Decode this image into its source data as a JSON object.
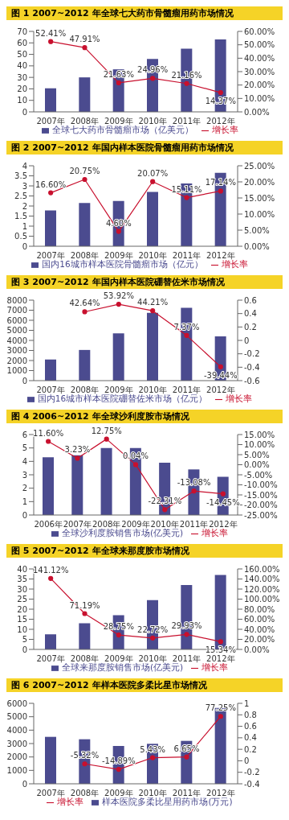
{
  "chart_data": [
    {
      "type": "bar",
      "title": "图 1 2007~2012 年全球七大药市骨髓瘤用药市场情况",
      "categories": [
        "2007年",
        "2008年",
        "2009年",
        "2010年",
        "2011年",
        "2012年"
      ],
      "series": [
        {
          "name": "全球七大药市骨髓瘤市场（亿美元）",
          "color": "#4b4b8f",
          "values": [
            20.5,
            30,
            37,
            46,
            55,
            63
          ]
        },
        {
          "type": "line",
          "axis": "y2",
          "name": "增长率",
          "color": "#c8102e",
          "values": [
            52.41,
            47.91,
            21.63,
            24.96,
            21.16,
            14.37
          ],
          "value_labels": [
            "52.41%",
            "47.91%",
            "21.63%",
            "24.96%",
            "21.16%",
            "14.37%"
          ]
        }
      ],
      "ylim": [
        0,
        70
      ],
      "yticks": [
        0,
        10,
        20,
        30,
        40,
        50,
        60,
        70
      ],
      "y2lim": [
        0,
        60
      ],
      "y2ticks": [
        {
          "value": 0,
          "label": "0.00%"
        },
        {
          "value": 10,
          "label": "10.00%"
        },
        {
          "value": 20,
          "label": "20.00%"
        },
        {
          "value": 30,
          "label": "30.00%"
        },
        {
          "value": 40,
          "label": "40.00%"
        },
        {
          "value": 50,
          "label": "50.00%"
        },
        {
          "value": 60,
          "label": "60.00%"
        }
      ],
      "legend": "bottom",
      "marker": "circle"
    },
    {
      "type": "bar",
      "title": "图 2 2007~2012 年国内样本医院骨髓瘤用药市场情况",
      "categories": [
        "2007年",
        "2008年",
        "2009年",
        "2010年",
        "2011年",
        "2012年"
      ],
      "series": [
        {
          "name": "国内16城市样本医院骨髓瘤市场（亿元）",
          "color": "#4b4b8f",
          "values": [
            1.78,
            2.15,
            2.25,
            2.7,
            3.12,
            3.65
          ]
        },
        {
          "type": "line",
          "axis": "y2",
          "name": "增长率",
          "color": "#c8102e",
          "values": [
            16.6,
            20.75,
            4.6,
            20.07,
            15.11,
            17.14
          ],
          "value_labels": [
            "16.60%",
            "20.75%",
            "4.60%",
            "20.07%",
            "15.11%",
            "17.14%"
          ]
        }
      ],
      "ylim": [
        0,
        4
      ],
      "yticks": [
        0,
        0.5,
        1,
        1.5,
        2,
        2.5,
        3,
        3.5,
        4
      ],
      "y2lim": [
        0,
        25
      ],
      "y2ticks": [
        {
          "value": 0,
          "label": "0.00%"
        },
        {
          "value": 5,
          "label": "5.00%"
        },
        {
          "value": 10,
          "label": "10.00%"
        },
        {
          "value": 15,
          "label": "15.00%"
        },
        {
          "value": 20,
          "label": "20.00%"
        },
        {
          "value": 25,
          "label": "25.00%"
        }
      ],
      "legend": "bottom",
      "marker": "circle"
    },
    {
      "type": "bar",
      "title": "图 3 2007~2012 年国内样本医院硼替佐米市场情况",
      "categories": [
        "2007年",
        "2008年",
        "2009年",
        "2010年",
        "2011年",
        "2012年"
      ],
      "series": [
        {
          "name": "国内16城市样本医院硼替佐米市场（亿元）",
          "color": "#4b4b8f",
          "values": [
            2100,
            3050,
            4700,
            6750,
            7250,
            4400
          ]
        },
        {
          "type": "line",
          "axis": "y2",
          "name": "增长率",
          "color": "#c8102e",
          "values": [
            null,
            0.4264,
            0.5392,
            0.4421,
            0.0737,
            -0.3944
          ],
          "value_labels": [
            null,
            "42.64%",
            "53.92%",
            "44.21%",
            "7.37%",
            "-39.44%"
          ]
        }
      ],
      "ylim": [
        0,
        8000
      ],
      "yticks": [
        0,
        1000,
        2000,
        3000,
        4000,
        5000,
        6000,
        7000,
        8000
      ],
      "y2lim": [
        -0.6,
        0.6
      ],
      "y2ticks": [
        -0.6,
        -0.4,
        -0.2,
        0,
        0.2,
        0.4,
        0.6
      ],
      "legend": "bottom",
      "marker": "circle"
    },
    {
      "type": "bar",
      "title": "图 4 2006~2012 年全球沙利度胺市场情况",
      "categories": [
        "2006年",
        "2007年",
        "2008年",
        "2009年",
        "2010年",
        "2011年",
        "2012年"
      ],
      "series": [
        {
          "name": "全球沙利度胺销售市场(亿美元)",
          "color": "#4b4b8f",
          "values": [
            4.3,
            4.45,
            5.0,
            5.0,
            3.9,
            3.4,
            2.85
          ]
        },
        {
          "type": "line",
          "axis": "y2",
          "name": "增长率",
          "color": "#c8102e",
          "values": [
            11.6,
            3.23,
            12.75,
            0.04,
            -22.31,
            -13.08,
            -14.45
          ],
          "value_labels": [
            "11.60%",
            "3.23%",
            "12.75%",
            "0.04%",
            "-22.31%",
            "-13.08%",
            "-14.45%"
          ]
        }
      ],
      "ylim": [
        0,
        6
      ],
      "yticks": [
        0,
        1,
        2,
        3,
        4,
        5,
        6
      ],
      "y2lim": [
        -25,
        15
      ],
      "y2ticks": [
        {
          "value": -25,
          "label": "-25.00%"
        },
        {
          "value": -20,
          "label": "-20.00%"
        },
        {
          "value": -15,
          "label": "-15.00%"
        },
        {
          "value": -10,
          "label": "-10.00%"
        },
        {
          "value": -5,
          "label": "-5.00%"
        },
        {
          "value": 0,
          "label": "0.00%"
        },
        {
          "value": 5,
          "label": "5.00%"
        },
        {
          "value": 10,
          "label": "10.00%"
        },
        {
          "value": 15,
          "label": "15.00%"
        }
      ],
      "legend": "bottom",
      "marker": "circle"
    },
    {
      "type": "bar",
      "title": "图 5 2007~2012 年全球来那度胺市场情况",
      "categories": [
        "2007年",
        "2008年",
        "2009年",
        "2010年",
        "2011年",
        "2012年"
      ],
      "series": [
        {
          "name": "全球来那度胺销售市场(亿美元)",
          "color": "#4b4b8f",
          "values": [
            7.5,
            13,
            17,
            24.5,
            32,
            37
          ]
        },
        {
          "type": "line",
          "axis": "y2",
          "name": "增长率",
          "color": "#c8102e",
          "values": [
            141.12,
            71.19,
            28.75,
            22.72,
            29.93,
            15.34
          ],
          "value_labels": [
            "141.12%",
            "71.19%",
            "28.75%",
            "22.72%",
            "29.93%",
            "15.34%"
          ]
        }
      ],
      "ylim": [
        0,
        40
      ],
      "yticks": [
        0,
        5,
        10,
        15,
        20,
        25,
        30,
        35,
        40
      ],
      "y2lim": [
        0,
        160
      ],
      "y2ticks": [
        {
          "value": 0,
          "label": "0.00%"
        },
        {
          "value": 20,
          "label": "20.00%"
        },
        {
          "value": 40,
          "label": "40.00%"
        },
        {
          "value": 60,
          "label": "60.00%"
        },
        {
          "value": 80,
          "label": "80.00%"
        },
        {
          "value": 100,
          "label": "100.00%"
        },
        {
          "value": 120,
          "label": "120.00%"
        },
        {
          "value": 140,
          "label": "140.00%"
        },
        {
          "value": 160,
          "label": "160.00%"
        }
      ],
      "legend": "bottom",
      "marker": "circle"
    },
    {
      "type": "bar",
      "title": "图 6 2007~2012 年样本医院多柔比星市场情况",
      "categories": [
        "2007年",
        "2008年",
        "2009年",
        "2010年",
        "2011年",
        "2012年"
      ],
      "series": [
        {
          "name": "样本医院多柔比星用药市场(万元)",
          "color": "#4b4b8f",
          "values": [
            3500,
            3320,
            2820,
            2980,
            3200,
            5650
          ]
        },
        {
          "type": "line",
          "axis": "y2",
          "name": "增长率",
          "color": "#c8102e",
          "values": [
            null,
            -0.0532,
            -0.1489,
            0.0543,
            0.0665,
            0.7725
          ],
          "value_labels": [
            null,
            "-5.32%",
            "-14.89%",
            "5.43%",
            "6.65%",
            "77.25%"
          ]
        }
      ],
      "ylim": [
        0,
        6000
      ],
      "yticks": [
        0,
        1000,
        2000,
        3000,
        4000,
        5000,
        6000
      ],
      "y2lim": [
        -0.4,
        1
      ],
      "y2ticks": [
        -0.4,
        -0.2,
        0,
        0.2,
        0.4,
        0.6,
        0.8,
        1
      ],
      "legend": "bottom",
      "marker": "circle"
    }
  ]
}
